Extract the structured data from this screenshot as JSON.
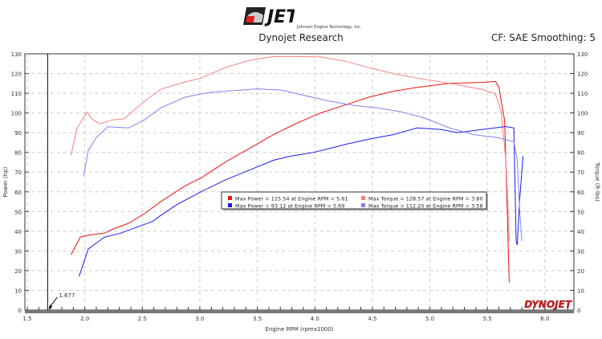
{
  "header": {
    "title": "Dynojet Research",
    "settings": "CF: SAE Smoothing: 5",
    "logo_text": "JET",
    "logo_subtext": "Johnson Engine Technology, Inc."
  },
  "watermark": "DYNOJET",
  "colors": {
    "power_run1": "#ee1111",
    "torque_run1": "#f58080",
    "power_run2": "#1a1aee",
    "torque_run2": "#8080f0"
  },
  "chart_data": {
    "type": "line",
    "xlabel": "Engine RPM (rpmx1000)",
    "ylabel": "Power (hp)",
    "y2label": "Torque (ft-lbs)",
    "xlim": [
      1.5,
      6.25
    ],
    "ylim": [
      0,
      130
    ],
    "y2lim": [
      0,
      130
    ],
    "xticks": [
      "1.5",
      "2.0",
      "2.5",
      "3.0",
      "3.5",
      "4.0",
      "4.5",
      "5.0",
      "5.5",
      "6.0"
    ],
    "yticks": [
      "0",
      "10",
      "20",
      "30",
      "40",
      "50",
      "60",
      "70",
      "80",
      "90",
      "100",
      "110",
      "120",
      "130"
    ],
    "grid": true,
    "marker": {
      "x": 1.677,
      "label": "1.677"
    },
    "legend": [
      "Max Power = 115.54 at Engine RPM = 5.61",
      "Max Torque = 128.57 at Engine RPM = 3.80",
      "Max Power = 93.12 at Engine RPM = 5.69",
      "Max Torque = 112.20 at Engine RPM = 3.58"
    ],
    "series": [
      {
        "key": "power_run1",
        "points": [
          [
            1.88,
            28
          ],
          [
            1.96,
            37
          ],
          [
            2.03,
            38
          ],
          [
            2.17,
            39
          ],
          [
            2.24,
            41
          ],
          [
            2.38,
            44
          ],
          [
            2.52,
            49
          ],
          [
            2.66,
            55
          ],
          [
            2.87,
            63
          ],
          [
            3.01,
            67
          ],
          [
            3.22,
            75
          ],
          [
            3.43,
            82
          ],
          [
            3.64,
            89
          ],
          [
            3.85,
            95
          ],
          [
            4.05,
            100
          ],
          [
            4.26,
            104
          ],
          [
            4.47,
            108
          ],
          [
            4.68,
            111
          ],
          [
            4.89,
            113
          ],
          [
            5.17,
            115
          ],
          [
            5.45,
            115.5
          ],
          [
            5.57,
            116
          ],
          [
            5.6,
            113
          ],
          [
            5.65,
            96
          ],
          [
            5.67,
            56
          ],
          [
            5.69,
            14
          ]
        ]
      },
      {
        "key": "torque_run1",
        "points": [
          [
            1.88,
            78.5
          ],
          [
            1.93,
            92
          ],
          [
            2.02,
            100.5
          ],
          [
            2.06,
            97
          ],
          [
            2.13,
            94.5
          ],
          [
            2.24,
            96.5
          ],
          [
            2.34,
            97
          ],
          [
            2.45,
            102.5
          ],
          [
            2.52,
            106
          ],
          [
            2.66,
            112
          ],
          [
            2.87,
            115.7
          ],
          [
            3.01,
            117.7
          ],
          [
            3.22,
            123
          ],
          [
            3.43,
            126.7
          ],
          [
            3.64,
            128.6
          ],
          [
            3.85,
            128.6
          ],
          [
            4.05,
            128.4
          ],
          [
            4.26,
            126.3
          ],
          [
            4.47,
            123
          ],
          [
            4.68,
            120
          ],
          [
            4.89,
            117.7
          ],
          [
            5.17,
            115
          ],
          [
            5.45,
            112
          ],
          [
            5.57,
            109.6
          ],
          [
            5.62,
            100.6
          ],
          [
            5.66,
            76
          ],
          [
            5.68,
            51.5
          ],
          [
            5.69,
            35
          ]
        ]
      },
      {
        "key": "power_run2",
        "points": [
          [
            1.95,
            17
          ],
          [
            2.03,
            31
          ],
          [
            2.17,
            37
          ],
          [
            2.31,
            39
          ],
          [
            2.45,
            42
          ],
          [
            2.59,
            45
          ],
          [
            2.66,
            48
          ],
          [
            2.8,
            53.5
          ],
          [
            3.01,
            60
          ],
          [
            3.22,
            66
          ],
          [
            3.43,
            71
          ],
          [
            3.64,
            76
          ],
          [
            3.78,
            78
          ],
          [
            3.99,
            80
          ],
          [
            4.13,
            82
          ],
          [
            4.26,
            84
          ],
          [
            4.47,
            86.7
          ],
          [
            4.68,
            89
          ],
          [
            4.89,
            92.4
          ],
          [
            5.1,
            91.6
          ],
          [
            5.24,
            90
          ],
          [
            5.45,
            91.6
          ],
          [
            5.66,
            93.1
          ],
          [
            5.73,
            92.4
          ],
          [
            5.75,
            35
          ],
          [
            5.76,
            33
          ],
          [
            5.78,
            55.6
          ],
          [
            5.81,
            78
          ]
        ]
      },
      {
        "key": "torque_run2",
        "points": [
          [
            1.99,
            68
          ],
          [
            2.03,
            81
          ],
          [
            2.1,
            87.5
          ],
          [
            2.2,
            93
          ],
          [
            2.38,
            92.4
          ],
          [
            2.52,
            96.5
          ],
          [
            2.66,
            102.6
          ],
          [
            2.87,
            108
          ],
          [
            3.08,
            110.4
          ],
          [
            3.36,
            111.6
          ],
          [
            3.5,
            112.2
          ],
          [
            3.71,
            111.6
          ],
          [
            3.92,
            108.7
          ],
          [
            4.13,
            106
          ],
          [
            4.34,
            103.8
          ],
          [
            4.54,
            102.6
          ],
          [
            4.75,
            100.6
          ],
          [
            4.96,
            97.3
          ],
          [
            5.17,
            92.4
          ],
          [
            5.38,
            89
          ],
          [
            5.59,
            87.5
          ],
          [
            5.73,
            85.4
          ],
          [
            5.76,
            76
          ],
          [
            5.78,
            51.5
          ],
          [
            5.8,
            35
          ]
        ]
      }
    ]
  }
}
